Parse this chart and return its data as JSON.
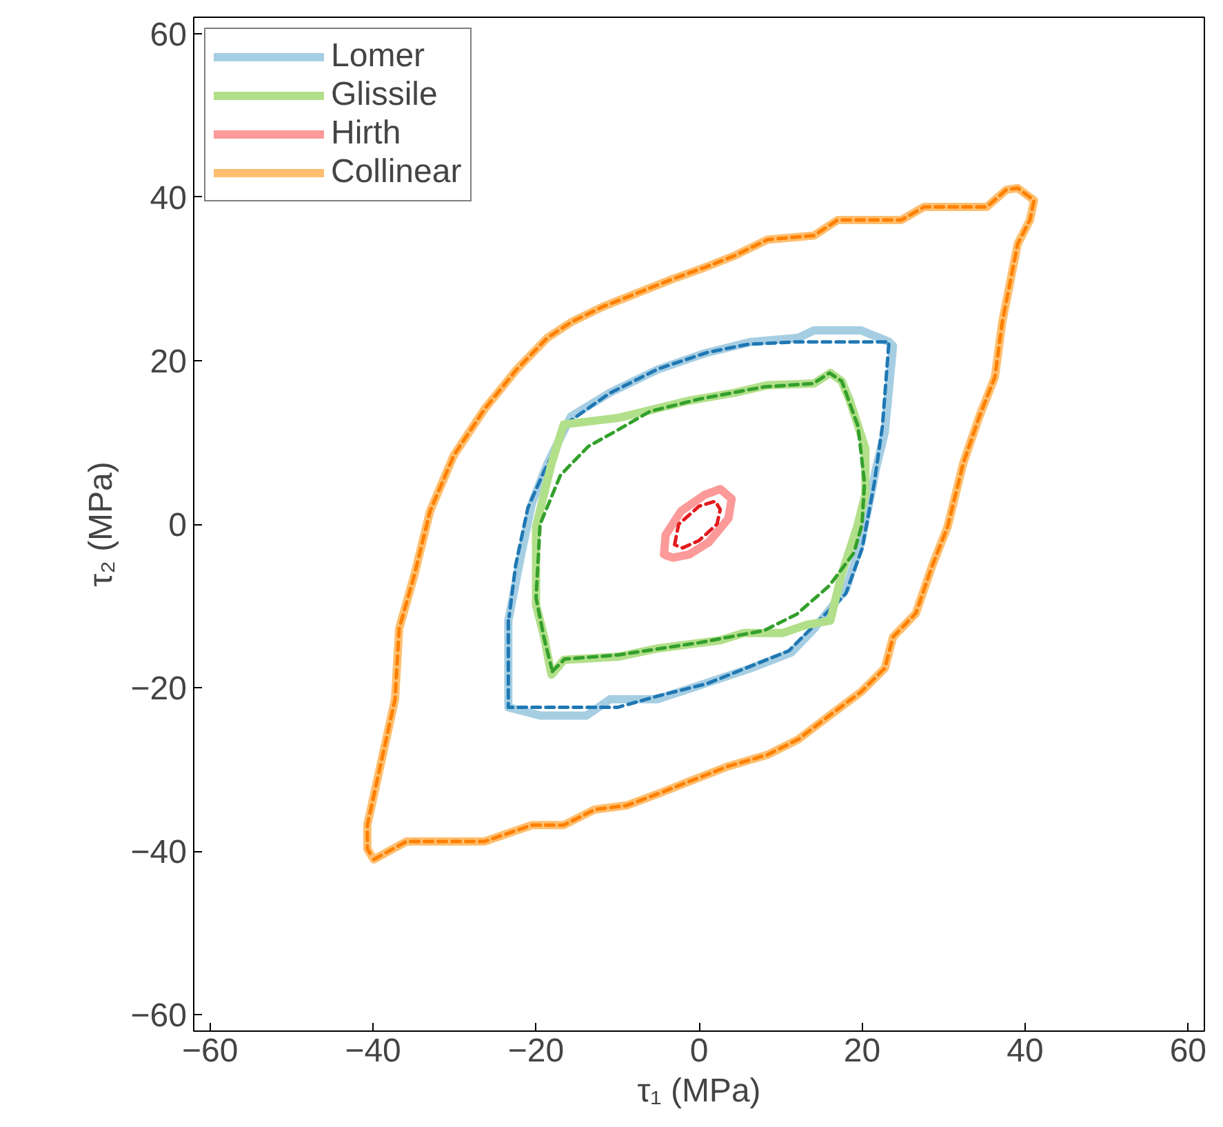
{
  "chart_data": {
    "type": "line",
    "xlabel": "τ₁ (MPa)",
    "ylabel": "τ₂ (MPa)",
    "xlim": [
      -62,
      62
    ],
    "ylim": [
      -62,
      62
    ],
    "xticks": [
      {
        "value": -60,
        "label": "−60"
      },
      {
        "value": -40,
        "label": "−40"
      },
      {
        "value": -20,
        "label": "−20"
      },
      0,
      20,
      40,
      60
    ],
    "yticks": [
      {
        "value": -60,
        "label": "−60"
      },
      {
        "value": -40,
        "label": "−40"
      },
      {
        "value": -20,
        "label": "−20"
      },
      0,
      20,
      40,
      60
    ],
    "grid": false,
    "legend": "top left",
    "marker": "none",
    "series": [
      {
        "name": "Lomer",
        "color": "#a6cee3",
        "line_style": "solid",
        "x": [
          -23.4,
          -19.5,
          -13.8,
          -10.9,
          -5.1,
          0.7,
          6.4,
          11.3,
          14.1,
          18,
          19.9,
          21.8,
          22.8,
          23.8,
          23.3,
          19.9,
          14.1,
          12.2,
          6.4,
          0.7,
          -5.1,
          -10.9,
          -15.7,
          -18.6,
          -20.5,
          -21.9,
          -23.4,
          -23.4
        ],
        "values": [
          -22.4,
          -23.4,
          -23.4,
          -21.4,
          -21.4,
          -19.5,
          -17.6,
          -15.7,
          -12.8,
          -8,
          -2.2,
          7.2,
          11.3,
          21.8,
          22.3,
          23.7,
          23.7,
          22.8,
          22.3,
          20.9,
          18.9,
          16.1,
          13.2,
          7.4,
          2.6,
          -4.1,
          -11.8,
          -22
        ]
      },
      {
        "color": "#1f78b4",
        "line_style": "dashed",
        "x": [
          -23.4,
          -23.4,
          -10,
          -5,
          1,
          11,
          18,
          20,
          21.5,
          22.5,
          23.3,
          12,
          6,
          1,
          -5,
          -11,
          -16,
          -19,
          -21,
          -22.5,
          -23.3
        ],
        "values": [
          -11.8,
          -22.4,
          -22.4,
          -21,
          -19.5,
          -15.5,
          -8.5,
          -3,
          5,
          12,
          22.3,
          22.3,
          22,
          21,
          19,
          16,
          12.5,
          6.5,
          2,
          -5,
          -11.3
        ]
      },
      {
        "name": "Glissile",
        "color": "#b2df8a",
        "line_style": "solid",
        "x": [
          -18.1,
          -16.6,
          -9.9,
          -5.1,
          2.6,
          5.5,
          10.3,
          13.2,
          16.1,
          17.5,
          19.4,
          20.4,
          20.4,
          18.5,
          17.5,
          16.1,
          14.1,
          8.4,
          4.5,
          -1.3,
          -7,
          -9.9,
          -16.6,
          -18.1,
          -20,
          -20,
          -19,
          -18.2
        ],
        "values": [
          -18.4,
          -16.6,
          -16.2,
          -15.2,
          -14.2,
          -13.3,
          -13.3,
          -12.3,
          -11.8,
          -6.1,
          -0.3,
          3.6,
          9.3,
          15.1,
          17.5,
          18.5,
          17.2,
          17,
          16.1,
          15.1,
          13.7,
          13,
          12.2,
          7.4,
          -0.3,
          -9.9,
          -13.8,
          -18
        ]
      },
      {
        "color": "#33a02c",
        "line_style": "dashed",
        "x": [
          -18,
          -16.5,
          -10,
          0,
          8,
          12,
          16,
          19,
          20,
          20.3,
          19.5,
          17.5,
          16,
          14,
          8,
          0,
          -6,
          -10,
          -13.6,
          -17,
          -19.5,
          -20,
          -19,
          -18.1
        ],
        "values": [
          -18,
          -16.5,
          -16,
          -14.5,
          -13,
          -11,
          -7.5,
          -3.5,
          0,
          5,
          12,
          17.5,
          18.5,
          17.2,
          16.8,
          15.3,
          13.8,
          11.5,
          9.5,
          6,
          0,
          -9,
          -14,
          -17.6
        ]
      },
      {
        "name": "Hirth",
        "color": "#fb9a99",
        "line_style": "solid",
        "x": [
          -4.3,
          -4.1,
          -2.2,
          0.7,
          2.6,
          4,
          3.6,
          1.2,
          -1.2,
          -3.2,
          -4.1
        ],
        "values": [
          -3.7,
          -1.3,
          1.6,
          3.6,
          4.3,
          3.1,
          0.7,
          -2.2,
          -3.7,
          -4.1,
          -3.8
        ]
      },
      {
        "color": "#e31a1c",
        "line_style": "dashed",
        "x": [
          -3,
          -2.5,
          0,
          2,
          2.6,
          2.2,
          0,
          -2,
          -2.8
        ],
        "values": [
          -2.5,
          0,
          2.2,
          2.8,
          1.8,
          0,
          -2,
          -2.9,
          -2.6
        ]
      },
      {
        "name": "Collinear",
        "color": "#fdbf6f",
        "line_style": "solid",
        "x": [
          -39.9,
          -35.9,
          -26.3,
          -20.5,
          -16.6,
          -12.8,
          -8.9,
          -5.1,
          -1.3,
          3.6,
          8.4,
          12.2,
          16,
          19.9,
          22.8,
          23.8,
          26.6,
          28.6,
          30.5,
          32.4,
          34.4,
          36.3,
          37.2,
          39.1,
          40.6,
          41.1,
          39.1,
          37.7,
          35.3,
          27.6,
          24.8,
          17,
          14.1,
          8.4,
          4.5,
          0.7,
          -3.2,
          -8,
          -11.8,
          -15.7,
          -18.6,
          -22.4,
          -26.3,
          -30.1,
          -33,
          -34.9,
          -36.8,
          -37.3,
          -38.8,
          -40.7,
          -40.7,
          -40.1
        ],
        "values": [
          -41,
          -38.8,
          -38.8,
          -36.8,
          -36.8,
          -34.9,
          -34.4,
          -33,
          -31.5,
          -29.6,
          -28.2,
          -26.3,
          -23.4,
          -20.5,
          -17.6,
          -13.8,
          -10.9,
          -5.1,
          -0.3,
          7.4,
          13.2,
          18,
          24.7,
          34.3,
          37.2,
          39.6,
          41.1,
          40.9,
          38.8,
          38.8,
          37.2,
          37.2,
          35.3,
          34.8,
          32.9,
          31.4,
          30,
          28.1,
          26.6,
          24.7,
          22.8,
          18.9,
          14.1,
          8.4,
          1.6,
          -6.1,
          -12.8,
          -21.4,
          -28.2,
          -36.8,
          -39.7,
          -40.7
        ]
      },
      {
        "color": "#ff7f00",
        "line_style": "dashed",
        "x": [
          -39.9,
          -35.9,
          -26.3,
          -20.5,
          -16.6,
          -12.8,
          -8.9,
          -5.1,
          -1.3,
          3.6,
          8.4,
          12.2,
          16,
          19.9,
          22.8,
          23.8,
          26.6,
          28.6,
          30.5,
          32.4,
          34.4,
          36.3,
          37.2,
          39.1,
          40.6,
          41.1,
          39.1,
          37.7,
          35.3,
          27.6,
          24.8,
          17,
          14.1,
          8.4,
          4.5,
          0.7,
          -3.2,
          -8,
          -11.8,
          -15.7,
          -18.6,
          -22.4,
          -26.3,
          -30.1,
          -33,
          -34.9,
          -36.8,
          -37.3,
          -38.8,
          -40.7,
          -40.7,
          -40.1
        ],
        "values": [
          -41,
          -38.8,
          -38.8,
          -36.8,
          -36.8,
          -34.9,
          -34.4,
          -33,
          -31.5,
          -29.6,
          -28.2,
          -26.3,
          -23.4,
          -20.5,
          -17.6,
          -13.8,
          -10.9,
          -5.1,
          -0.3,
          7.4,
          13.2,
          18,
          24.7,
          34.3,
          37.2,
          39.6,
          41.1,
          40.9,
          38.8,
          38.8,
          37.2,
          37.2,
          35.3,
          34.8,
          32.9,
          31.4,
          30,
          28.1,
          26.6,
          24.7,
          22.8,
          18.9,
          14.1,
          8.4,
          1.6,
          -6.1,
          -12.8,
          -21.4,
          -28.2,
          -36.8,
          -39.7,
          -40.7
        ]
      }
    ]
  }
}
